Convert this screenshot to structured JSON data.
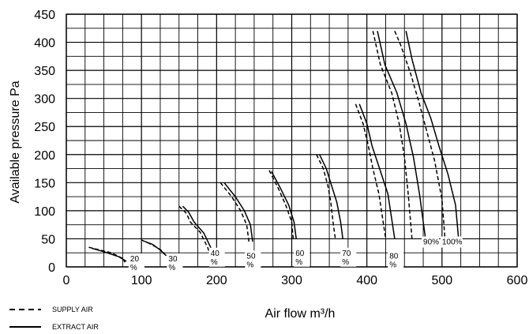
{
  "chart_data": {
    "type": "line",
    "title": "",
    "xlabel": "Air flow m³/h",
    "ylabel": "Available pressure Pa",
    "xlim": [
      0,
      600
    ],
    "ylim": [
      0,
      450
    ],
    "x_ticks": [
      0,
      100,
      200,
      300,
      400,
      500,
      600
    ],
    "y_ticks": [
      0,
      50,
      100,
      150,
      200,
      250,
      300,
      350,
      400,
      450
    ],
    "grid": true,
    "legend_position": "bottom-left",
    "legend": [
      {
        "label": "SUPPLY AIR",
        "style": "dashed"
      },
      {
        "label": "EXTRACT AIR",
        "style": "solid"
      }
    ],
    "curve_labels": [
      {
        "label": "20 %",
        "x": 85,
        "y": 10
      },
      {
        "label": "30 %",
        "x": 136,
        "y": 10
      },
      {
        "label": "40 %",
        "x": 192,
        "y": 20
      },
      {
        "label": "50 %",
        "x": 240,
        "y": 15
      },
      {
        "label": "60 %",
        "x": 305,
        "y": 20
      },
      {
        "label": "70 %",
        "x": 367,
        "y": 20
      },
      {
        "label": "80 %",
        "x": 430,
        "y": 15
      },
      {
        "label": "90%",
        "x": 475,
        "y": 40
      },
      {
        "label": "100%",
        "x": 500,
        "y": 40
      }
    ],
    "series": [
      {
        "style": "dashed",
        "x": [
          30,
          45,
          60,
          75,
          78
        ],
        "y": [
          35,
          30,
          25,
          15,
          8
        ]
      },
      {
        "style": "solid",
        "x": [
          34,
          50,
          70,
          80
        ],
        "y": [
          33,
          27,
          18,
          10
        ]
      },
      {
        "style": "dashed",
        "x": [
          100,
          110,
          120,
          128,
          131
        ],
        "y": [
          48,
          42,
          35,
          28,
          22
        ]
      },
      {
        "style": "solid",
        "x": [
          105,
          115,
          125,
          133
        ],
        "y": [
          45,
          40,
          30,
          20
        ]
      },
      {
        "style": "dashed",
        "x": [
          150,
          160,
          165,
          178,
          188,
          192
        ],
        "y": [
          108,
          95,
          80,
          62,
          35,
          20
        ]
      },
      {
        "style": "solid",
        "x": [
          155,
          163,
          170,
          183,
          192,
          196
        ],
        "y": [
          108,
          97,
          80,
          60,
          35,
          20
        ]
      },
      {
        "style": "dashed",
        "x": [
          205,
          220,
          232,
          240,
          243
        ],
        "y": [
          150,
          125,
          100,
          75,
          45
        ]
      },
      {
        "style": "solid",
        "x": [
          210,
          225,
          237,
          245,
          248
        ],
        "y": [
          150,
          125,
          100,
          75,
          45
        ]
      },
      {
        "style": "dashed",
        "x": [
          270,
          282,
          292,
          300,
          302
        ],
        "y": [
          172,
          140,
          110,
          80,
          50
        ]
      },
      {
        "style": "solid",
        "x": [
          273,
          285,
          296,
          303,
          306
        ],
        "y": [
          170,
          140,
          110,
          80,
          50
        ]
      },
      {
        "style": "dashed",
        "x": [
          333,
          342,
          348,
          352,
          355,
          358
        ],
        "y": [
          200,
          175,
          145,
          115,
          80,
          50
        ]
      },
      {
        "style": "solid",
        "x": [
          337,
          346,
          353,
          360,
          365,
          368
        ],
        "y": [
          200,
          175,
          145,
          115,
          80,
          50
        ]
      },
      {
        "style": "dashed",
        "x": [
          385,
          395,
          402,
          408,
          416,
          425
        ],
        "y": [
          290,
          255,
          215,
          175,
          130,
          50
        ]
      },
      {
        "style": "solid",
        "x": [
          390,
          400,
          407,
          417,
          428,
          437
        ],
        "y": [
          290,
          255,
          215,
          175,
          130,
          50
        ]
      },
      {
        "style": "dashed",
        "x": [
          408,
          418,
          433,
          443,
          450,
          455,
          460
        ],
        "y": [
          420,
          360,
          310,
          255,
          195,
          130,
          50
        ]
      },
      {
        "style": "solid",
        "x": [
          414,
          424,
          440,
          452,
          462,
          470,
          478
        ],
        "y": [
          420,
          360,
          310,
          255,
          195,
          130,
          50
        ]
      },
      {
        "style": "dashed",
        "x": [
          437,
          445,
          458,
          470,
          480,
          490,
          500,
          504
        ],
        "y": [
          420,
          395,
          345,
          290,
          240,
          190,
          120,
          50
        ]
      },
      {
        "style": "solid",
        "x": [
          452,
          460,
          472,
          485,
          496,
          508,
          518,
          522
        ],
        "y": [
          420,
          370,
          310,
          265,
          215,
          165,
          110,
          50
        ]
      }
    ]
  }
}
